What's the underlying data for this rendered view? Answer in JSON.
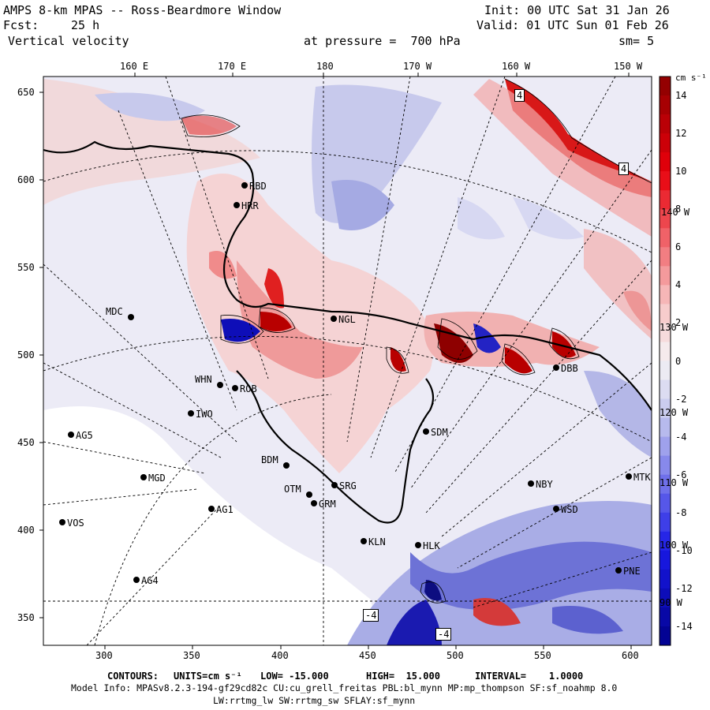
{
  "header": {
    "title": "AMPS 8-km MPAS -- Ross-Beardmore Window",
    "init": "Init: 00 UTC Sat 31 Jan 26",
    "fcst_label": "Fcst:",
    "fcst_value": "25 h",
    "valid": "Valid: 01 UTC Sun 01 Feb 26",
    "field": "Vertical velocity",
    "pressure": "at pressure =  700 hPa",
    "smoothing": "sm= 5"
  },
  "axes": {
    "top_lon_labels": [
      "160 E",
      "170 E",
      "180",
      "170 W",
      "160 W",
      "150 W"
    ],
    "left_labels": [
      "650",
      "600",
      "550",
      "500",
      "450",
      "400",
      "350"
    ],
    "bottom_labels": [
      "300",
      "350",
      "400",
      "450",
      "500",
      "550",
      "600"
    ]
  },
  "colorbar": {
    "unit": "cm s⁻¹",
    "ticks": [
      "14",
      "12",
      "10",
      "8",
      "6",
      "4",
      "2",
      "0",
      "-2",
      "-4",
      "-6",
      "-8",
      "-10",
      "-12",
      "-14"
    ],
    "colors": {
      "max_red": "#8b0000",
      "red": "#e8000b",
      "light_red": "#f7c4c4",
      "white": "#f4f2f4",
      "light_blue": "#c3c6ee",
      "blue": "#1a1ae6",
      "max_blue": "#00008b"
    }
  },
  "overlay_lon_labels": [
    "140 W",
    "130 W",
    "120 W",
    "110 W",
    "100 W",
    "90 W"
  ],
  "stations": [
    "MDC",
    "NGL",
    "WHN",
    "IWO",
    "AG5",
    "MGD",
    "SDM",
    "BDM",
    "SRG",
    "OTM",
    "GRM",
    "AG1",
    "VOS",
    "KLN",
    "HLK",
    "AG4",
    "NBY",
    "MTK",
    "WSD",
    "PNE",
    "RBD",
    "HRR",
    "ROB",
    "DBB"
  ],
  "boxed_values": [
    "4",
    "4",
    "-4",
    "-4"
  ],
  "footer": {
    "contours_label": "CONTOURS:",
    "units_label": "UNITS=cm s⁻¹",
    "low_label": "LOW= -15.000",
    "high_label": "HIGH=  15.000",
    "interval_label": "INTERVAL=    1.0000",
    "model_info": "Model Info: MPASv8.2.3-194-gf29cd82c CU:cu_grell_freitas PBL:bl_mynn MP:mp_thompson SF:sf_noahmp 8.0",
    "model_info2": "LW:rrtmg_lw SW:rrtmg_sw SFLAY:sf_mynn"
  }
}
